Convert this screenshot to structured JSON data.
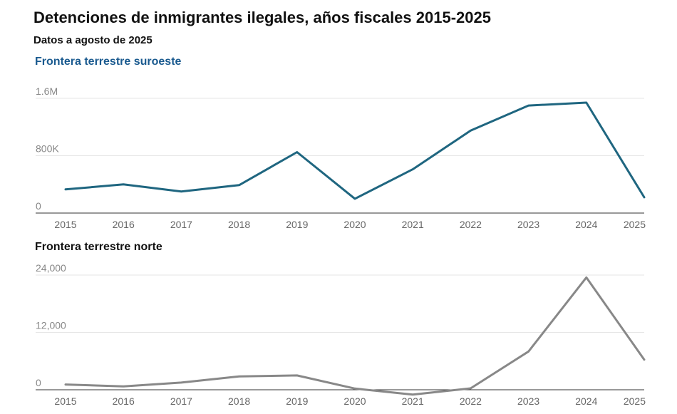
{
  "header": {
    "title": "Detenciones de inmigrantes ilegales, años fiscales 2015-2025",
    "subtitle": "Datos a agosto de 2025"
  },
  "chart_data": [
    {
      "type": "line",
      "title": "Frontera terrestre suroeste",
      "x": [
        "2015",
        "2016",
        "2017",
        "2018",
        "2019",
        "2020",
        "2021",
        "2022",
        "2023",
        "2024",
        "2025"
      ],
      "values": [
        330000,
        400000,
        300000,
        390000,
        850000,
        200000,
        610000,
        1150000,
        1500000,
        1540000,
        220000
      ],
      "yticks": [
        0,
        800000,
        1600000
      ],
      "ytick_labels": [
        "0",
        "800K",
        "1.6M"
      ],
      "ylim": [
        0,
        1600000
      ],
      "color": "#1f6680"
    },
    {
      "type": "line",
      "title": "Frontera terrestre norte",
      "x": [
        "2015",
        "2016",
        "2017",
        "2018",
        "2019",
        "2020",
        "2021",
        "2022",
        "2023",
        "2024",
        "2025"
      ],
      "values": [
        1100,
        700,
        1500,
        2800,
        3000,
        250,
        -1000,
        300,
        8000,
        23500,
        6300
      ],
      "yticks": [
        0,
        12000,
        24000
      ],
      "ytick_labels": [
        "0",
        "12,000",
        "24,000"
      ],
      "ylim": [
        0,
        24000
      ],
      "color": "#888888"
    }
  ]
}
